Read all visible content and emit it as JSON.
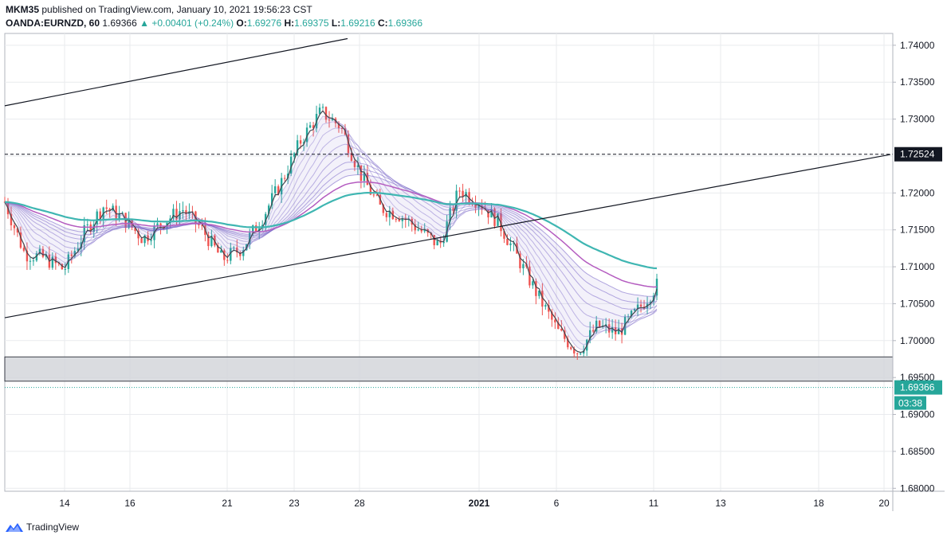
{
  "header": {
    "user": "MKM35",
    "published_text": "published on TradingView.com, January 10, 2021 19:56:23 CST",
    "symbol": "OANDA:EURNZD, 60",
    "last": "1.69366",
    "change": "+0.00401 (+0.24%)",
    "o_label": "O:",
    "o_value": "1.69276",
    "h_label": "H:",
    "h_value": "1.69375",
    "l_label": "L:",
    "l_value": "1.69216",
    "c_label": "C:",
    "c_value": "1.69366"
  },
  "footer": {
    "brand": "TradingView"
  },
  "colors": {
    "up": "#26a69a",
    "down": "#ef5350",
    "ema_teal": "#3fb6b2",
    "ema_purple": "#b45cc0",
    "ribbon": "#7b68c8",
    "grid": "#e9ebee",
    "zone": "#d4d6da"
  },
  "chart_data": {
    "type": "line",
    "x_ticks": [
      "14",
      "16",
      "21",
      "23",
      "28",
      "2021",
      "6",
      "11",
      "13",
      "18",
      "20"
    ],
    "y_ticks": [
      "1.74000",
      "1.73500",
      "1.73000",
      "1.72524",
      "1.72000",
      "1.71500",
      "1.71000",
      "1.70500",
      "1.70000",
      "1.69500",
      "1.69366",
      "1.69000",
      "1.68500",
      "1.68000"
    ],
    "ylim": [
      1.6796,
      1.7416
    ],
    "current_price": "1.69366",
    "countdown": "03:38",
    "dashed_level": "1.72524",
    "zone": [
      1.6945,
      1.6978
    ],
    "price_path": {
      "x": [
        0,
        6,
        12,
        18,
        24,
        30,
        36,
        42,
        48,
        54,
        60,
        66,
        72,
        78,
        84,
        90,
        96,
        102,
        108,
        114,
        120,
        126,
        132,
        138,
        144,
        150,
        156,
        162,
        168,
        174,
        180,
        186,
        192,
        198
      ],
      "y": [
        1.7188,
        1.7118,
        1.7112,
        1.7096,
        1.7145,
        1.7182,
        1.7165,
        1.7138,
        1.716,
        1.7178,
        1.715,
        1.711,
        1.7125,
        1.7165,
        1.7215,
        1.7272,
        1.731,
        1.729,
        1.7225,
        1.718,
        1.717,
        1.715,
        1.7128,
        1.7205,
        1.7188,
        1.716,
        1.711,
        1.706,
        1.7012,
        1.6985,
        1.702,
        1.701,
        1.704,
        1.7075
      ]
    },
    "trend_lines": [
      {
        "x": [
          0,
          430
        ],
        "y": [
          1.7318,
          1.7409
        ]
      },
      {
        "x": [
          0,
          1111
        ],
        "y": [
          1.7031,
          1.7252
        ]
      }
    ]
  }
}
